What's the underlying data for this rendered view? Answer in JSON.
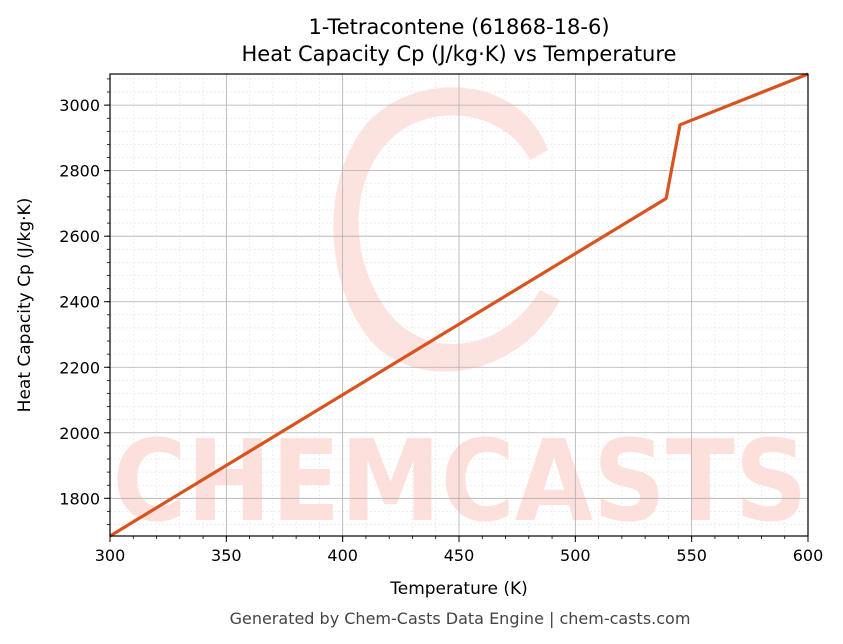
{
  "chart_data": {
    "type": "line",
    "title": "1-Tetracontene (61868-18-6)",
    "subtitle": "Heat Capacity Cp (J/kg·K) vs Temperature",
    "xlabel": "Temperature (K)",
    "ylabel": "Heat Capacity Cp (J/kg·K)",
    "xlim": [
      300,
      600
    ],
    "ylim": [
      1685,
      3095
    ],
    "x_ticks": [
      300,
      350,
      400,
      450,
      500,
      550,
      600
    ],
    "y_ticks": [
      1800,
      2000,
      2200,
      2400,
      2600,
      2800,
      3000
    ],
    "grid": true,
    "series": [
      {
        "color": "#d9531e",
        "x": [
          300,
          539,
          545,
          600
        ],
        "y": [
          1685,
          2715,
          2940,
          3095
        ]
      }
    ]
  },
  "watermark": {
    "text": "CHEMCASTS",
    "color": "#fde0db"
  },
  "footer": "Generated by Chem-Casts Data Engine | chem-casts.com"
}
